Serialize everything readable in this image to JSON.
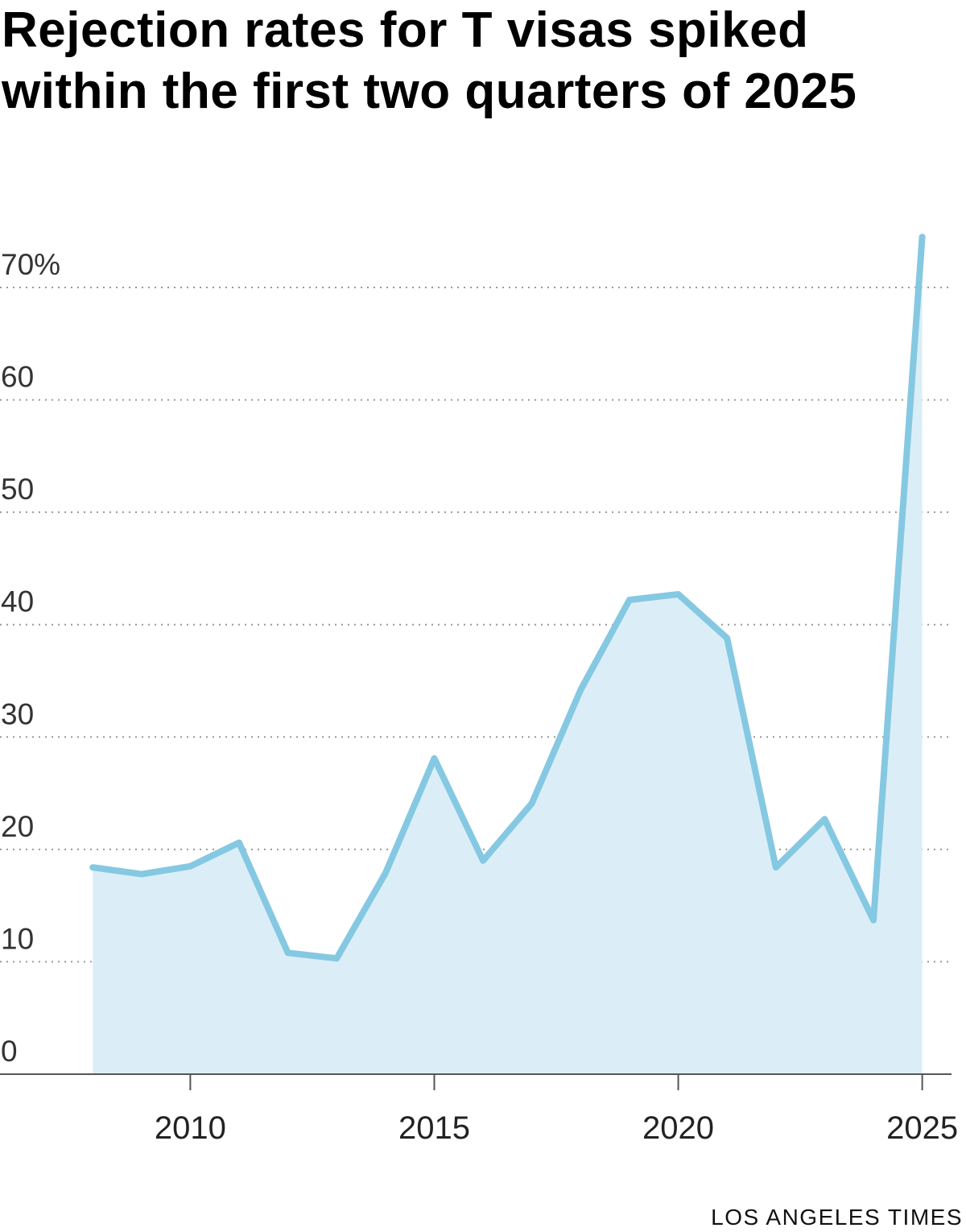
{
  "header": {
    "title": "Rejection rates for T visas spiked within the first two quarters of 2025"
  },
  "footer": {
    "credit": "LOS ANGELES TIMES"
  },
  "colors": {
    "line": "#85c8e2",
    "area": "#dbeef8",
    "grid": "#999999",
    "axis": "#555555"
  },
  "chart_data": {
    "type": "area",
    "title": "Rejection rates for T visas spiked within the first two quarters of 2025",
    "xlabel": "",
    "ylabel": "",
    "x": [
      2008,
      2009,
      2010,
      2011,
      2012,
      2013,
      2014,
      2015,
      2016,
      2017,
      2018,
      2019,
      2020,
      2021,
      2022,
      2023,
      2024,
      2025
    ],
    "series": [
      {
        "values": [
          18.4,
          17.8,
          18.5,
          20.6,
          10.8,
          10.3,
          17.9,
          28.1,
          19.0,
          24.1,
          34.2,
          42.2,
          42.7,
          38.8,
          18.4,
          22.7,
          13.7,
          74.5
        ]
      }
    ],
    "xlim": [
      2006.1,
      2025.6
    ],
    "ylim": [
      0,
      70
    ],
    "x_ticks": [
      2010,
      2015,
      2020,
      2025
    ],
    "x_tick_labels": [
      "2010",
      "2015",
      "2020",
      "2025"
    ],
    "y_ticks": [
      0,
      10,
      20,
      30,
      40,
      50,
      60,
      70
    ],
    "y_tick_labels": [
      "0",
      "10",
      "20",
      "30",
      "40",
      "50",
      "60",
      "70%"
    ],
    "grid": true,
    "legend": "none"
  }
}
